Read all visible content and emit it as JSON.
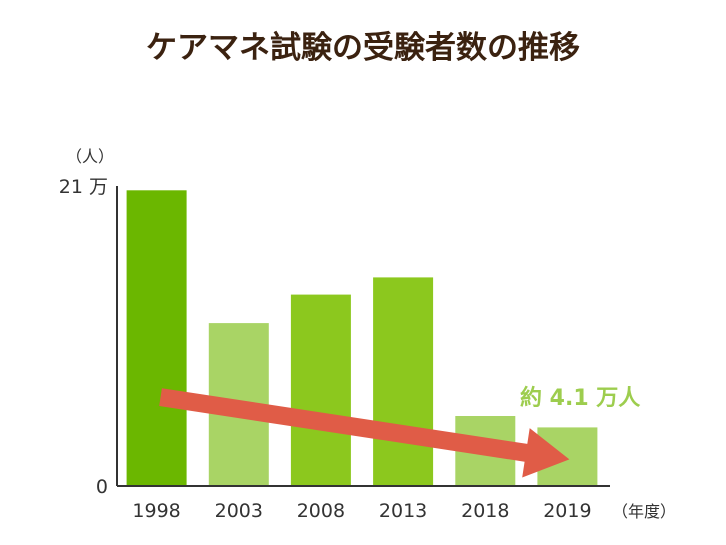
{
  "colors": {
    "title": "#3b2210",
    "bar_dark": "#6bb700",
    "bar_mid": "#8cc81e",
    "bar_light": "#a9d465",
    "arrow": "#e05c47",
    "annotation": "#9dcd4e",
    "axis": "#333333"
  },
  "chart_data": {
    "type": "bar",
    "title": "ケアマネ試験の受験者数の推移",
    "ylabel": "（人）",
    "xlabel": "（年度）",
    "ylim": [
      0,
      210000
    ],
    "y_tick_labels": [
      "0",
      "21 万"
    ],
    "categories": [
      "1998",
      "2003",
      "2008",
      "2013",
      "2018",
      "2019"
    ],
    "values": [
      207000,
      114000,
      134000,
      146000,
      49000,
      41000
    ],
    "bar_tones": [
      "dark",
      "light",
      "mid",
      "mid",
      "light",
      "light"
    ],
    "annotation": {
      "text": "約 4.1 万人",
      "target": "2019"
    },
    "trend_arrow": {
      "from_category": "1998",
      "to_category": "2019",
      "from_value": 65000,
      "to_value": 20000
    },
    "grid": false,
    "legend": "none"
  }
}
